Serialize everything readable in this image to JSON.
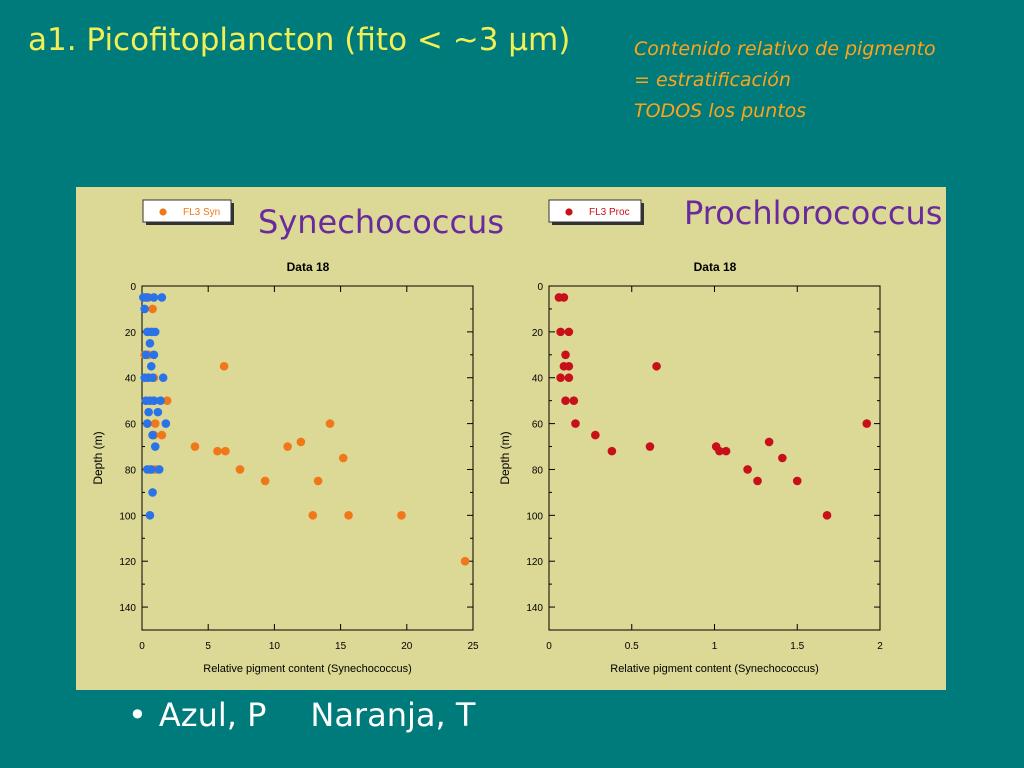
{
  "slide": {
    "title": "a1. Picofitoplancton (fito < ~3 µm)",
    "note_lines": [
      "Contenido relativo de pigmento",
      "= estratificación",
      "TODOS los puntos"
    ],
    "bullet_marker": "•",
    "bullet_items": [
      "Azul, P",
      "Naranja, T"
    ]
  },
  "colors": {
    "background": "#007b7b",
    "panel": "#dcd895",
    "title": "#f2ef55",
    "note": "#ffa31a",
    "big_label": "#6a2a9c",
    "orange": "#f07818",
    "blue": "#2a72e8",
    "red": "#c8101a"
  },
  "chart_data": [
    {
      "type": "scatter",
      "title": "Data 18",
      "big_label": "Synechococcus",
      "legend": [
        "FL3 Syn"
      ],
      "legend_position": "top-left",
      "xlabel": "Relative pigment content (Synechococcus)",
      "ylabel": "Depth (m)",
      "xlim": [
        0,
        25
      ],
      "ylim": [
        0,
        150
      ],
      "y_inverted": true,
      "xticks": [
        0,
        5,
        10,
        15,
        20,
        25
      ],
      "yticks": [
        0,
        20,
        40,
        60,
        80,
        100,
        120,
        140
      ],
      "series": [
        {
          "name": "FL3 Syn",
          "color": "#f07818",
          "points": [
            [
              0.2,
              5
            ],
            [
              0.3,
              5
            ],
            [
              0.5,
              5
            ],
            [
              0.8,
              10
            ],
            [
              0.5,
              20
            ],
            [
              0.8,
              20
            ],
            [
              0.2,
              30
            ],
            [
              0.5,
              30
            ],
            [
              0.4,
              40
            ],
            [
              0.9,
              40
            ],
            [
              6.2,
              35
            ],
            [
              0.3,
              50
            ],
            [
              0.9,
              50
            ],
            [
              1.9,
              50
            ],
            [
              0.4,
              60
            ],
            [
              1.0,
              60
            ],
            [
              0.9,
              65
            ],
            [
              1.5,
              65
            ],
            [
              4.0,
              70
            ],
            [
              5.7,
              72
            ],
            [
              6.3,
              72
            ],
            [
              11.0,
              70
            ],
            [
              12.0,
              68
            ],
            [
              14.2,
              60
            ],
            [
              0.6,
              80
            ],
            [
              1.0,
              80
            ],
            [
              7.4,
              80
            ],
            [
              9.3,
              85
            ],
            [
              13.3,
              85
            ],
            [
              15.2,
              75
            ],
            [
              12.9,
              100
            ],
            [
              15.6,
              100
            ],
            [
              19.6,
              100
            ],
            [
              24.4,
              120
            ]
          ]
        },
        {
          "name": "",
          "color": "#2a72e8",
          "points": [
            [
              0.1,
              5
            ],
            [
              0.4,
              5
            ],
            [
              0.9,
              5
            ],
            [
              1.5,
              5
            ],
            [
              0.2,
              10
            ],
            [
              0.4,
              20
            ],
            [
              0.7,
              20
            ],
            [
              1.0,
              20
            ],
            [
              0.6,
              25
            ],
            [
              0.3,
              30
            ],
            [
              0.9,
              30
            ],
            [
              0.7,
              35
            ],
            [
              0.2,
              40
            ],
            [
              0.5,
              40
            ],
            [
              0.8,
              40
            ],
            [
              1.6,
              40
            ],
            [
              0.3,
              50
            ],
            [
              0.6,
              50
            ],
            [
              0.9,
              50
            ],
            [
              1.4,
              50
            ],
            [
              0.5,
              55
            ],
            [
              1.2,
              55
            ],
            [
              0.4,
              60
            ],
            [
              1.8,
              60
            ],
            [
              0.8,
              65
            ],
            [
              1.0,
              70
            ],
            [
              0.4,
              80
            ],
            [
              0.7,
              80
            ],
            [
              1.3,
              80
            ],
            [
              0.8,
              90
            ],
            [
              0.6,
              100
            ]
          ]
        }
      ]
    },
    {
      "type": "scatter",
      "title": "Data 18",
      "big_label": "Prochlorococcus",
      "legend": [
        "FL3 Proc"
      ],
      "legend_position": "top-left",
      "xlabel": "Relative pigment content (Synechococcus)",
      "ylabel": "Depth (m)",
      "xlim": [
        0,
        2
      ],
      "ylim": [
        0,
        150
      ],
      "y_inverted": true,
      "xticks": [
        0,
        0.5,
        1,
        1.5,
        2
      ],
      "yticks": [
        0,
        20,
        40,
        60,
        80,
        100,
        120,
        140
      ],
      "series": [
        {
          "name": "FL3 Proc",
          "color": "#c8101a",
          "points": [
            [
              0.06,
              5
            ],
            [
              0.09,
              5
            ],
            [
              0.07,
              20
            ],
            [
              0.12,
              20
            ],
            [
              0.1,
              30
            ],
            [
              0.09,
              35
            ],
            [
              0.12,
              35
            ],
            [
              0.65,
              35
            ],
            [
              0.07,
              40
            ],
            [
              0.12,
              40
            ],
            [
              0.1,
              50
            ],
            [
              0.15,
              50
            ],
            [
              0.16,
              60
            ],
            [
              1.92,
              60
            ],
            [
              0.28,
              65
            ],
            [
              0.38,
              72
            ],
            [
              0.61,
              70
            ],
            [
              1.01,
              70
            ],
            [
              1.03,
              72
            ],
            [
              1.07,
              72
            ],
            [
              1.33,
              68
            ],
            [
              1.41,
              75
            ],
            [
              1.2,
              80
            ],
            [
              1.26,
              85
            ],
            [
              1.5,
              85
            ],
            [
              1.68,
              100
            ]
          ]
        }
      ]
    }
  ]
}
